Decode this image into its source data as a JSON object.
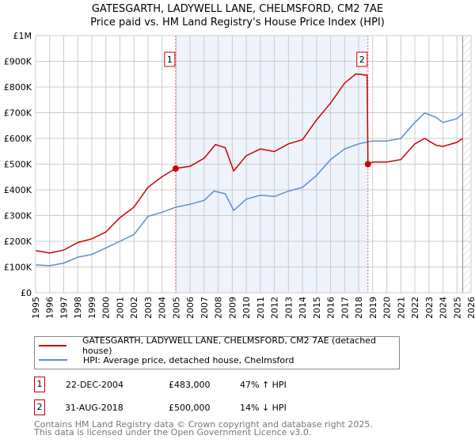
{
  "title": {
    "line1": "GATESGARTH, LADYWELL LANE, CHELMSFORD, CM2 7AE",
    "line2": "Price paid vs. HM Land Registry's House Price Index (HPI)"
  },
  "legend": {
    "property": "GATESGARTH, LADYWELL LANE, CHELMSFORD, CM2 7AE (detached house)",
    "hpi": "HPI: Average price, detached house, Chelmsford"
  },
  "transactions": [
    {
      "num": "1",
      "date": "22-DEC-2004",
      "price": "£483,000",
      "hpi": "47% ↑ HPI"
    },
    {
      "num": "2",
      "date": "31-AUG-2018",
      "price": "£500,000",
      "hpi": "14% ↓ HPI"
    }
  ],
  "footer": {
    "line1": "Contains HM Land Registry data © Crown copyright and database right 2025.",
    "line2": "This data is licensed under the Open Government Licence v3.0."
  },
  "chart_data": {
    "type": "line",
    "xlim": [
      1995,
      2026
    ],
    "ylim": [
      0,
      1000000
    ],
    "yticks": [
      {
        "v": 0,
        "label": "£0"
      },
      {
        "v": 100000,
        "label": "£100K"
      },
      {
        "v": 200000,
        "label": "£200K"
      },
      {
        "v": 300000,
        "label": "£300K"
      },
      {
        "v": 400000,
        "label": "£400K"
      },
      {
        "v": 500000,
        "label": "£500K"
      },
      {
        "v": 600000,
        "label": "£600K"
      },
      {
        "v": 700000,
        "label": "£700K"
      },
      {
        "v": 800000,
        "label": "£800K"
      },
      {
        "v": 900000,
        "label": "£900K"
      },
      {
        "v": 1000000,
        "label": "£1M"
      }
    ],
    "xticks": [
      "1995",
      "1996",
      "1997",
      "1998",
      "1999",
      "2000",
      "2001",
      "2002",
      "2003",
      "2004",
      "2005",
      "2006",
      "2007",
      "2008",
      "2009",
      "2010",
      "2011",
      "2012",
      "2013",
      "2014",
      "2015",
      "2016",
      "2017",
      "2018",
      "2019",
      "2020",
      "2021",
      "2022",
      "2023",
      "2024",
      "2025",
      "2026"
    ],
    "colors": {
      "property": "#cc0000",
      "hpi": "#5b8fd0",
      "shade": "#eef3fc"
    },
    "shaded_range": [
      2004.97,
      2018.66
    ],
    "forecast_start": 2025.4,
    "markers": [
      {
        "label": "1",
        "x": 2004.97,
        "y": 483000
      },
      {
        "label": "2",
        "x": 2018.66,
        "y": 500000
      }
    ],
    "series": [
      {
        "name": "property",
        "x": [
          1995,
          1996,
          1997,
          1998,
          1999,
          2000,
          2001,
          2002,
          2003,
          2004,
          2004.97,
          2006,
          2007,
          2007.8,
          2008.5,
          2009.1,
          2010,
          2011,
          2012,
          2013,
          2014,
          2015,
          2016,
          2017,
          2017.8,
          2018.6,
          2018.66,
          2019,
          2020,
          2021,
          2022,
          2022.7,
          2023.5,
          2024,
          2025,
          2025.4
        ],
        "y": [
          164000,
          154000,
          166000,
          195000,
          210000,
          236000,
          292000,
          333000,
          410000,
          451000,
          483000,
          492000,
          523000,
          576000,
          564000,
          474000,
          533000,
          559000,
          549000,
          579000,
          595000,
          672000,
          738000,
          815000,
          851000,
          846000,
          500000,
          508000,
          508000,
          518000,
          579000,
          600000,
          574000,
          569000,
          585000,
          600000
        ]
      },
      {
        "name": "hpi",
        "x": [
          1995,
          1996,
          1997,
          1998,
          1999,
          2000,
          2001,
          2002,
          2003,
          2004,
          2005,
          2006,
          2007,
          2007.7,
          2008.5,
          2009.1,
          2010,
          2011,
          2012,
          2013,
          2014,
          2015,
          2016,
          2017,
          2018,
          2019,
          2020,
          2021,
          2022,
          2022.7,
          2023.5,
          2024,
          2025,
          2025.4
        ],
        "y": [
          108000,
          105000,
          115000,
          138000,
          149000,
          174000,
          200000,
          226000,
          297000,
          313000,
          333000,
          344000,
          359000,
          395000,
          385000,
          320000,
          364000,
          379000,
          374000,
          395000,
          410000,
          456000,
          518000,
          559000,
          579000,
          590000,
          590000,
          600000,
          662000,
          699000,
          682000,
          662000,
          677000,
          697000
        ]
      }
    ]
  }
}
